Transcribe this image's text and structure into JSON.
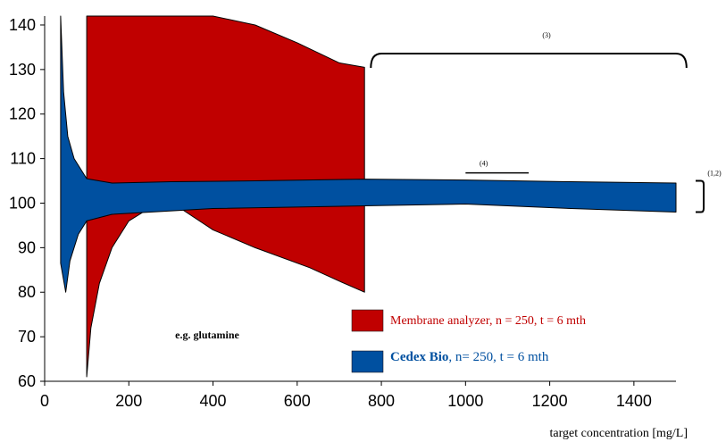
{
  "chart_data": {
    "type": "area",
    "xlabel": "target concentration [mg/L]",
    "xlim": [
      0,
      1500
    ],
    "ylim": [
      60,
      142
    ],
    "xticks": [
      0,
      200,
      400,
      600,
      800,
      1000,
      1200,
      1400
    ],
    "yticks": [
      60,
      70,
      80,
      90,
      100,
      110,
      120,
      130,
      140
    ],
    "grid": false,
    "legend_position": "bottom-center",
    "series": [
      {
        "name": "Membrane analyzer, n = 250, t = 6 mth",
        "color": "#C00000",
        "upper": [
          [
            100,
            142
          ],
          [
            400,
            142
          ],
          [
            500,
            140
          ],
          [
            600,
            136
          ],
          [
            700,
            131.5
          ],
          [
            760,
            130.5
          ]
        ],
        "lower": [
          [
            100,
            61
          ],
          [
            110,
            72
          ],
          [
            130,
            82
          ],
          [
            160,
            90
          ],
          [
            200,
            96
          ],
          [
            260,
            99.5
          ],
          [
            320,
            99
          ],
          [
            400,
            94
          ],
          [
            500,
            90
          ],
          [
            630,
            85.5
          ],
          [
            700,
            82.5
          ],
          [
            760,
            80
          ]
        ]
      },
      {
        "name": "Cedex Bio, n= 250, t = 6 mth",
        "color": "#0050A0",
        "upper": [
          [
            38,
            142
          ],
          [
            45,
            125
          ],
          [
            55,
            115
          ],
          [
            70,
            110
          ],
          [
            100,
            105.5
          ],
          [
            160,
            104.5
          ],
          [
            300,
            104.8
          ],
          [
            500,
            105
          ],
          [
            760,
            105.4
          ],
          [
            1000,
            105.2
          ],
          [
            1250,
            104.8
          ],
          [
            1500,
            104.5
          ]
        ],
        "lower": [
          [
            38,
            86.5
          ],
          [
            50,
            80
          ],
          [
            60,
            87
          ],
          [
            80,
            93
          ],
          [
            100,
            96
          ],
          [
            160,
            97.5
          ],
          [
            400,
            98.8
          ],
          [
            760,
            99.4
          ],
          [
            1000,
            99.8
          ],
          [
            1250,
            98.8
          ],
          [
            1500,
            98
          ]
        ]
      }
    ],
    "annotations": {
      "label_3": "(3)",
      "label_4": "(4)",
      "label_12": "(1,2)",
      "example": "e.g. glutamine",
      "brace_3_range": [
        775,
        1525
      ],
      "line_4_range": [
        1000,
        1150
      ],
      "line_4_y": 106.8,
      "brace_12_y_range": [
        98,
        105
      ]
    }
  },
  "legend": {
    "membrane_text": "Membrane analyzer, n = 250, t = 6 mth",
    "cedex_bold": "Cedex Bio",
    "cedex_rest": ", n= 250, t = 6 mth"
  }
}
